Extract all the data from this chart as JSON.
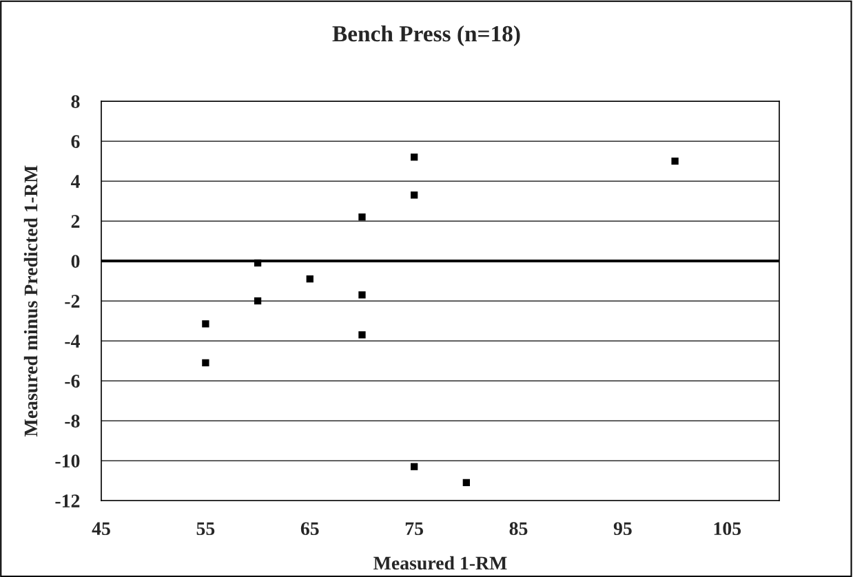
{
  "chart_data": {
    "type": "scatter",
    "title": "Bench Press (n=18)",
    "xlabel": "Measured 1-RM",
    "ylabel": "Measured minus Predicted 1-RM",
    "series": [
      {
        "color": "#000000",
        "x": [
          55,
          55,
          60,
          60,
          65,
          70,
          70,
          70,
          75,
          75,
          75,
          80,
          100
        ],
        "values": [
          -3.15,
          -5.1,
          -0.1,
          -2.0,
          -0.9,
          2.2,
          -1.7,
          -3.7,
          5.2,
          3.3,
          -10.3,
          -11.1,
          5.0
        ]
      }
    ],
    "xlim": [
      45,
      110
    ],
    "xticks": [
      45,
      55,
      65,
      75,
      85,
      95,
      105
    ],
    "ylim": [
      -12,
      8
    ],
    "yticks": [
      -12,
      -10,
      -8,
      -6,
      -4,
      -2,
      0,
      2,
      4,
      6,
      8
    ],
    "grid": "y",
    "marker": "square",
    "legend": false,
    "ref_lines": [
      {
        "axis": "y",
        "value": 0,
        "color": "#000000"
      }
    ]
  }
}
